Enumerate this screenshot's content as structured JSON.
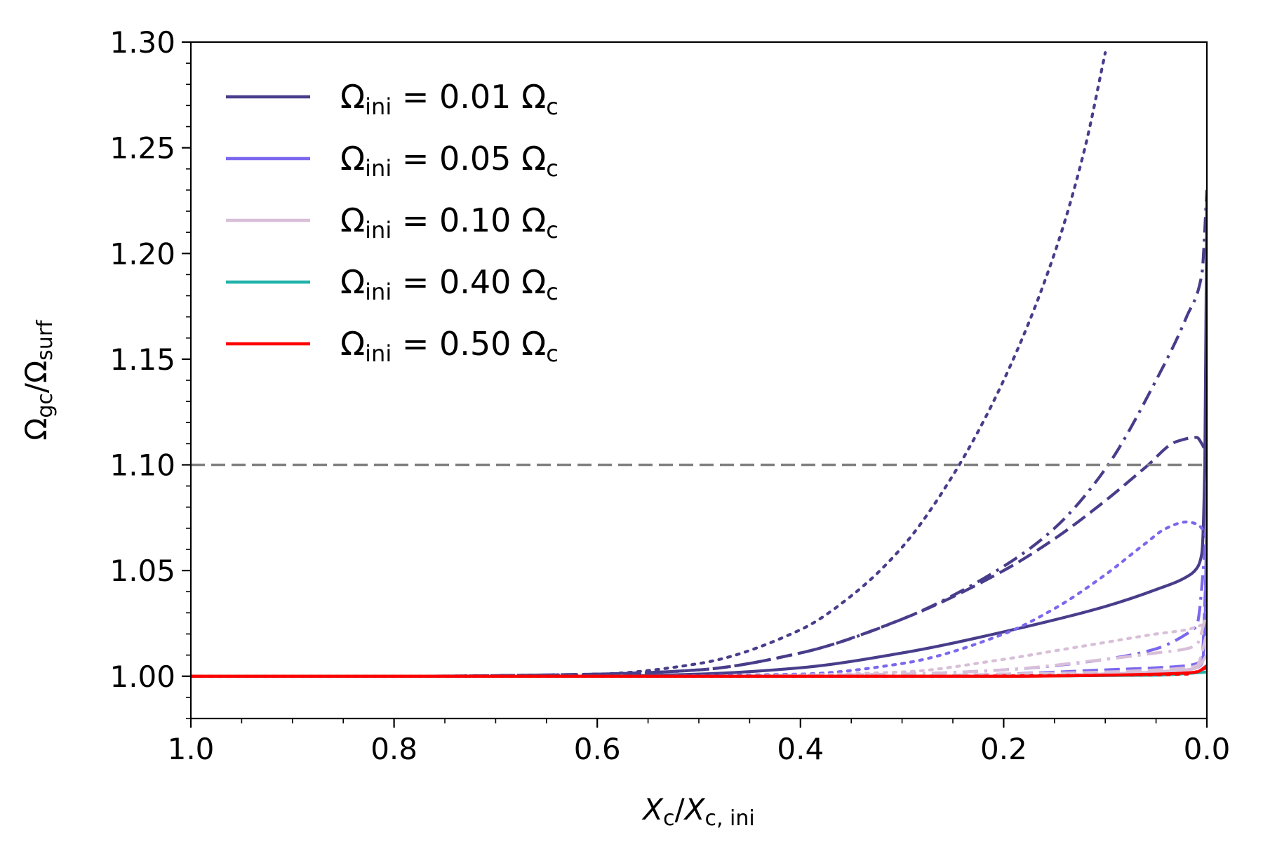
{
  "chart_data": {
    "type": "line",
    "title": "",
    "xlabel": "X_c/X_c,ini",
    "ylabel": "Ω_gc/Ω_surf",
    "xlabel_parts": {
      "main": "X",
      "main_sub": "c",
      "slash": "/",
      "den": "X",
      "den_sub": "c, ini"
    },
    "ylabel_parts": {
      "main": "Ω",
      "main_sub": "gc",
      "slash": "/",
      "den": "Ω",
      "den_sub": "surf"
    },
    "xlim": [
      1.0,
      0.0
    ],
    "ylim": [
      0.98,
      1.3
    ],
    "x_ticks": [
      "1.0",
      "0.8",
      "0.6",
      "0.4",
      "0.2",
      "0.0"
    ],
    "y_ticks": [
      "1.00",
      "1.05",
      "1.10",
      "1.15",
      "1.20",
      "1.25",
      "1.30"
    ],
    "reference_line": {
      "y": 1.1,
      "style": "dashed",
      "color": "#808080"
    },
    "legend_location": "upper-left",
    "legend": [
      {
        "omega": "Ω",
        "sub": "ini",
        "eq": "= 0.01",
        "unit": "Ω",
        "unit_sub": "c",
        "color": "#483d8b"
      },
      {
        "omega": "Ω",
        "sub": "ini",
        "eq": "= 0.05",
        "unit": "Ω",
        "unit_sub": "c",
        "color": "#7b68ee"
      },
      {
        "omega": "Ω",
        "sub": "ini",
        "eq": "= 0.10",
        "unit": "Ω",
        "unit_sub": "c",
        "color": "#d8bfd8"
      },
      {
        "omega": "Ω",
        "sub": "ini",
        "eq": "= 0.40",
        "unit": "Ω",
        "unit_sub": "c",
        "color": "#20b2aa"
      },
      {
        "omega": "Ω",
        "sub": "ini",
        "eq": "= 0.50",
        "unit": "Ω",
        "unit_sub": "c",
        "color": "#ff0000"
      }
    ],
    "series": [
      {
        "name": "0.01 solid",
        "color": "#483d8b",
        "style": "solid",
        "x": [
          1.0,
          0.8,
          0.6,
          0.5,
          0.4,
          0.3,
          0.2,
          0.1,
          0.05,
          0.02,
          0.01,
          0.005,
          0.002,
          0.0
        ],
        "y": [
          1.0,
          1.0,
          1.0,
          1.001,
          1.004,
          1.011,
          1.021,
          1.033,
          1.041,
          1.047,
          1.051,
          1.058,
          1.1,
          1.23
        ]
      },
      {
        "name": "0.01 dashed",
        "color": "#483d8b",
        "style": "dashed",
        "x": [
          1.0,
          0.8,
          0.6,
          0.5,
          0.4,
          0.3,
          0.2,
          0.15,
          0.1,
          0.06,
          0.03,
          0.01,
          0.005,
          0.0
        ],
        "y": [
          1.0,
          1.0,
          1.001,
          1.003,
          1.011,
          1.027,
          1.05,
          1.065,
          1.083,
          1.099,
          1.111,
          1.113,
          1.11,
          1.105
        ]
      },
      {
        "name": "0.01 dashdot",
        "color": "#483d8b",
        "style": "dashdot",
        "x": [
          1.0,
          0.8,
          0.6,
          0.5,
          0.4,
          0.3,
          0.2,
          0.15,
          0.1,
          0.05,
          0.02,
          0.005,
          0.0
        ],
        "y": [
          1.0,
          1.0,
          1.001,
          1.003,
          1.011,
          1.027,
          1.052,
          1.07,
          1.098,
          1.14,
          1.17,
          1.19,
          1.23
        ]
      },
      {
        "name": "0.01 dotted",
        "color": "#483d8b",
        "style": "dotted",
        "x": [
          1.0,
          0.8,
          0.6,
          0.5,
          0.4,
          0.35,
          0.3,
          0.25,
          0.2,
          0.15,
          0.12,
          0.1
        ],
        "y": [
          1.0,
          1.0,
          1.001,
          1.006,
          1.022,
          1.038,
          1.061,
          1.095,
          1.14,
          1.2,
          1.25,
          1.295
        ]
      },
      {
        "name": "0.05 solid",
        "color": "#7b68ee",
        "style": "solid",
        "x": [
          1.0,
          0.5,
          0.3,
          0.2,
          0.1,
          0.05,
          0.02,
          0.01,
          0.005,
          0.002,
          0.0
        ],
        "y": [
          1.0,
          1.0,
          1.0,
          1.0,
          1.001,
          1.002,
          1.003,
          1.004,
          1.006,
          1.02,
          1.09
        ]
      },
      {
        "name": "0.05 dashed",
        "color": "#7b68ee",
        "style": "dashed",
        "x": [
          1.0,
          0.5,
          0.3,
          0.2,
          0.1,
          0.05,
          0.02,
          0.01,
          0.005,
          0.0
        ],
        "y": [
          1.0,
          1.0,
          1.0,
          1.001,
          1.003,
          1.004,
          1.005,
          1.006,
          1.008,
          1.06
        ]
      },
      {
        "name": "0.05 dashdot",
        "color": "#7b68ee",
        "style": "dashdot",
        "x": [
          1.0,
          0.5,
          0.3,
          0.2,
          0.1,
          0.05,
          0.02,
          0.01,
          0.0
        ],
        "y": [
          1.0,
          1.0,
          1.001,
          1.003,
          1.008,
          1.013,
          1.02,
          1.024,
          1.07
        ]
      },
      {
        "name": "0.05 dotted",
        "color": "#7b68ee",
        "style": "dotted",
        "x": [
          1.0,
          0.6,
          0.4,
          0.3,
          0.2,
          0.15,
          0.1,
          0.06,
          0.04,
          0.02,
          0.01,
          0.005,
          0.0
        ],
        "y": [
          1.0,
          1.0,
          1.001,
          1.006,
          1.02,
          1.032,
          1.048,
          1.063,
          1.07,
          1.073,
          1.072,
          1.07,
          1.065
        ]
      },
      {
        "name": "0.10 solid",
        "color": "#d8bfd8",
        "style": "solid",
        "x": [
          1.0,
          0.5,
          0.3,
          0.2,
          0.1,
          0.05,
          0.02,
          0.01,
          0.0
        ],
        "y": [
          1.0,
          1.0,
          1.0,
          1.0,
          1.001,
          1.002,
          1.003,
          1.004,
          1.01
        ]
      },
      {
        "name": "0.10 dashed",
        "color": "#d8bfd8",
        "style": "dashed",
        "x": [
          1.0,
          0.5,
          0.3,
          0.2,
          0.1,
          0.05,
          0.02,
          0.01,
          0.0
        ],
        "y": [
          1.0,
          1.0,
          1.0,
          1.001,
          1.002,
          1.003,
          1.004,
          1.005,
          1.02
        ]
      },
      {
        "name": "0.10 dashdot",
        "color": "#d8bfd8",
        "style": "dashdot",
        "x": [
          1.0,
          0.5,
          0.3,
          0.2,
          0.1,
          0.05,
          0.02,
          0.01,
          0.0
        ],
        "y": [
          1.0,
          1.0,
          1.001,
          1.003,
          1.008,
          1.011,
          1.013,
          1.015,
          1.03
        ]
      },
      {
        "name": "0.10 dotted",
        "color": "#d8bfd8",
        "style": "dotted",
        "x": [
          1.0,
          0.5,
          0.3,
          0.2,
          0.15,
          0.1,
          0.05,
          0.02,
          0.0
        ],
        "y": [
          1.0,
          1.0,
          1.002,
          1.008,
          1.012,
          1.016,
          1.02,
          1.022,
          1.025
        ]
      },
      {
        "name": "0.40 solid",
        "color": "#20b2aa",
        "style": "solid",
        "x": [
          1.0,
          0.5,
          0.2,
          0.05,
          0.0
        ],
        "y": [
          1.0,
          1.0,
          1.0,
          1.0005,
          1.002
        ]
      },
      {
        "name": "0.50 solid",
        "color": "#ff0000",
        "style": "solid",
        "x": [
          1.0,
          0.5,
          0.2,
          0.05,
          0.01,
          0.0
        ],
        "y": [
          1.0,
          1.0,
          1.0,
          1.001,
          1.002,
          1.005
        ]
      },
      {
        "name": "0.50 dotted",
        "color": "#ff0000",
        "style": "dotted",
        "x": [
          1.0,
          0.6,
          0.3,
          0.1,
          0.02,
          0.0
        ],
        "y": [
          1.0,
          1.0,
          1.0,
          1.0005,
          1.001,
          1.004
        ]
      }
    ]
  }
}
